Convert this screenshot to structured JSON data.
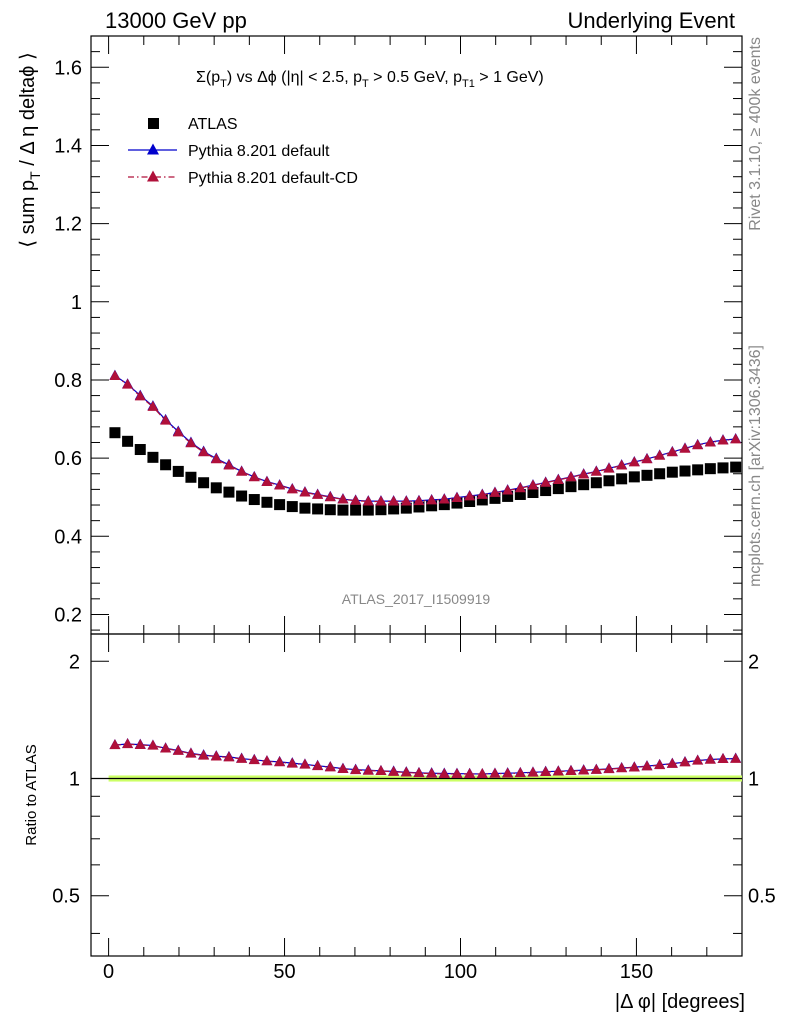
{
  "header": {
    "left": "13000 GeV pp",
    "right": "Underlying Event"
  },
  "side_labels": {
    "rivet": "Rivet 3.1.10, ≥ 400k events",
    "mcplots": "mcplots.cern.ch [arXiv:1306.3436]"
  },
  "watermark": "ATLAS_2017_I1509919",
  "chart_data": [
    {
      "type": "scatter",
      "panel": "main",
      "title": "Σ(p_T) vs Δφ (|η| < 2.5, p_T > 0.5 GeV, p_T1 > 1 GeV)",
      "ylabel": "⟨ sum p_T / Δ η deltaφ ⟩",
      "xlabel": "|Δ φ| [degrees]",
      "xlim": [
        -5,
        180
      ],
      "ylim": [
        0.15,
        1.68
      ],
      "yticks": [
        0.2,
        0.4,
        0.6,
        0.8,
        1,
        1.2,
        1.4,
        1.6
      ],
      "ytick_labels": [
        "0.2",
        "0.4",
        "0.6",
        "0.8",
        "1",
        "1.2",
        "1.4",
        "1.6"
      ],
      "xticks": [
        0,
        50,
        100,
        150
      ],
      "xtick_labels": [
        "0",
        "50",
        "100",
        "150"
      ],
      "legend_position": "top-left",
      "x": [
        1.8,
        5.4,
        9.0,
        12.6,
        16.2,
        19.8,
        23.4,
        27.0,
        30.6,
        34.2,
        37.8,
        41.4,
        45.0,
        48.6,
        52.2,
        55.8,
        59.4,
        63.0,
        66.6,
        70.2,
        73.8,
        77.4,
        81.0,
        84.6,
        88.2,
        91.8,
        95.4,
        99.0,
        102.6,
        106.2,
        109.8,
        113.4,
        117.0,
        120.6,
        124.2,
        127.8,
        131.4,
        135.0,
        138.6,
        142.2,
        145.8,
        149.4,
        153.0,
        156.6,
        160.2,
        163.8,
        167.4,
        171.0,
        174.6,
        178.2
      ],
      "series": [
        {
          "name": "ATLAS",
          "marker": "square",
          "color": "#000000",
          "values": [
            0.665,
            0.643,
            0.622,
            0.602,
            0.583,
            0.566,
            0.551,
            0.537,
            0.524,
            0.513,
            0.503,
            0.494,
            0.487,
            0.481,
            0.476,
            0.472,
            0.47,
            0.468,
            0.467,
            0.467,
            0.467,
            0.468,
            0.47,
            0.472,
            0.475,
            0.478,
            0.481,
            0.485,
            0.489,
            0.493,
            0.497,
            0.502,
            0.507,
            0.512,
            0.517,
            0.522,
            0.527,
            0.532,
            0.537,
            0.542,
            0.547,
            0.552,
            0.556,
            0.56,
            0.564,
            0.567,
            0.57,
            0.573,
            0.575,
            0.577
          ]
        },
        {
          "name": "Pythia 8.201 default",
          "marker": "triangle",
          "line": "solid",
          "color": "#0000cc",
          "values": [
            0.811,
            0.789,
            0.76,
            0.733,
            0.698,
            0.668,
            0.64,
            0.617,
            0.599,
            0.583,
            0.566,
            0.552,
            0.54,
            0.531,
            0.521,
            0.513,
            0.507,
            0.501,
            0.495,
            0.492,
            0.49,
            0.49,
            0.49,
            0.49,
            0.491,
            0.493,
            0.495,
            0.499,
            0.503,
            0.507,
            0.512,
            0.518,
            0.524,
            0.531,
            0.538,
            0.545,
            0.552,
            0.559,
            0.566,
            0.574,
            0.582,
            0.59,
            0.598,
            0.607,
            0.616,
            0.625,
            0.634,
            0.641,
            0.646,
            0.649
          ]
        },
        {
          "name": "Pythia 8.201 default-CD",
          "marker": "triangle",
          "line": "dash-dot",
          "color": "#b0103a",
          "values": [
            0.81,
            0.788,
            0.758,
            0.731,
            0.696,
            0.666,
            0.638,
            0.615,
            0.597,
            0.581,
            0.565,
            0.551,
            0.539,
            0.53,
            0.52,
            0.512,
            0.506,
            0.5,
            0.494,
            0.491,
            0.489,
            0.489,
            0.489,
            0.489,
            0.49,
            0.492,
            0.494,
            0.498,
            0.502,
            0.506,
            0.511,
            0.517,
            0.523,
            0.53,
            0.537,
            0.544,
            0.551,
            0.558,
            0.565,
            0.573,
            0.581,
            0.589,
            0.597,
            0.606,
            0.615,
            0.624,
            0.633,
            0.64,
            0.645,
            0.648
          ]
        }
      ]
    },
    {
      "type": "scatter",
      "panel": "ratio",
      "ylabel": "Ratio to ATLAS",
      "xlabel": "|Δ φ| [degrees]",
      "xlim": [
        -5,
        180
      ],
      "ylim": [
        0.35,
        2.35
      ],
      "yticks": [
        0.5,
        1,
        2
      ],
      "ytick_labels": [
        "0.5",
        "1",
        "2"
      ],
      "xticks": [
        0,
        50,
        100,
        150
      ],
      "xtick_labels": [
        "0",
        "50",
        "100",
        "150"
      ],
      "reference_band": {
        "center": 1.0,
        "halfwidth": 0.018,
        "color": "#ccff66"
      },
      "x": [
        1.8,
        5.4,
        9.0,
        12.6,
        16.2,
        19.8,
        23.4,
        27.0,
        30.6,
        34.2,
        37.8,
        41.4,
        45.0,
        48.6,
        52.2,
        55.8,
        59.4,
        63.0,
        66.6,
        70.2,
        73.8,
        77.4,
        81.0,
        84.6,
        88.2,
        91.8,
        95.4,
        99.0,
        102.6,
        106.2,
        109.8,
        113.4,
        117.0,
        120.6,
        124.2,
        127.8,
        131.4,
        135.0,
        138.6,
        142.2,
        145.8,
        149.4,
        153.0,
        156.6,
        160.2,
        163.8,
        167.4,
        171.0,
        174.6,
        178.2
      ],
      "series": [
        {
          "name": "Pythia 8.201 default",
          "marker": "triangle",
          "line": "solid",
          "color": "#0000cc",
          "values": [
            1.219,
            1.226,
            1.222,
            1.215,
            1.196,
            1.18,
            1.16,
            1.148,
            1.141,
            1.136,
            1.125,
            1.117,
            1.108,
            1.103,
            1.095,
            1.087,
            1.078,
            1.07,
            1.06,
            1.054,
            1.05,
            1.046,
            1.043,
            1.038,
            1.034,
            1.032,
            1.03,
            1.029,
            1.028,
            1.027,
            1.03,
            1.032,
            1.034,
            1.037,
            1.041,
            1.044,
            1.047,
            1.051,
            1.054,
            1.059,
            1.064,
            1.069,
            1.076,
            1.084,
            1.092,
            1.102,
            1.112,
            1.119,
            1.123,
            1.125
          ]
        },
        {
          "name": "Pythia 8.201 default-CD",
          "marker": "triangle",
          "line": "dash-dot",
          "color": "#b0103a",
          "values": [
            1.218,
            1.225,
            1.219,
            1.214,
            1.194,
            1.177,
            1.158,
            1.145,
            1.139,
            1.133,
            1.123,
            1.115,
            1.107,
            1.101,
            1.092,
            1.085,
            1.076,
            1.068,
            1.058,
            1.051,
            1.047,
            1.045,
            1.04,
            1.036,
            1.032,
            1.029,
            1.027,
            1.027,
            1.027,
            1.027,
            1.028,
            1.03,
            1.032,
            1.035,
            1.039,
            1.042,
            1.045,
            1.048,
            1.052,
            1.057,
            1.062,
            1.067,
            1.074,
            1.082,
            1.09,
            1.1,
            1.111,
            1.117,
            1.122,
            1.123
          ]
        }
      ]
    }
  ]
}
